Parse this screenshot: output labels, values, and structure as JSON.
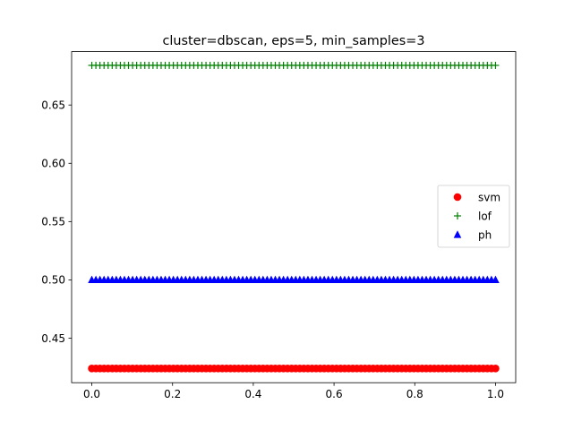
{
  "chart_data": {
    "type": "scatter",
    "title": "cluster=dbscan, eps=5, min_samples=3",
    "xlabel": "",
    "ylabel": "",
    "xlim": [
      -0.05,
      1.05
    ],
    "ylim": [
      0.4118,
      0.6958
    ],
    "x_ticks": [
      "0.0",
      "0.2",
      "0.4",
      "0.6",
      "0.8",
      "1.0"
    ],
    "y_ticks": [
      "0.45",
      "0.50",
      "0.55",
      "0.60",
      "0.65"
    ],
    "x_tick_values": [
      0.0,
      0.2,
      0.4,
      0.6,
      0.8,
      1.0
    ],
    "y_tick_values": [
      0.45,
      0.5,
      0.55,
      0.6,
      0.65
    ],
    "x": {
      "start": 0.0,
      "end": 1.0,
      "count": 100
    },
    "series": [
      {
        "name": "svm",
        "marker": "circle",
        "color": "#ff0000",
        "value": 0.424
      },
      {
        "name": "lof",
        "marker": "plus",
        "color": "#008000",
        "value": 0.684
      },
      {
        "name": "ph",
        "marker": "triangle",
        "color": "#0000ff",
        "value": 0.5
      }
    ],
    "legend_position": "center-right",
    "grid": false
  }
}
